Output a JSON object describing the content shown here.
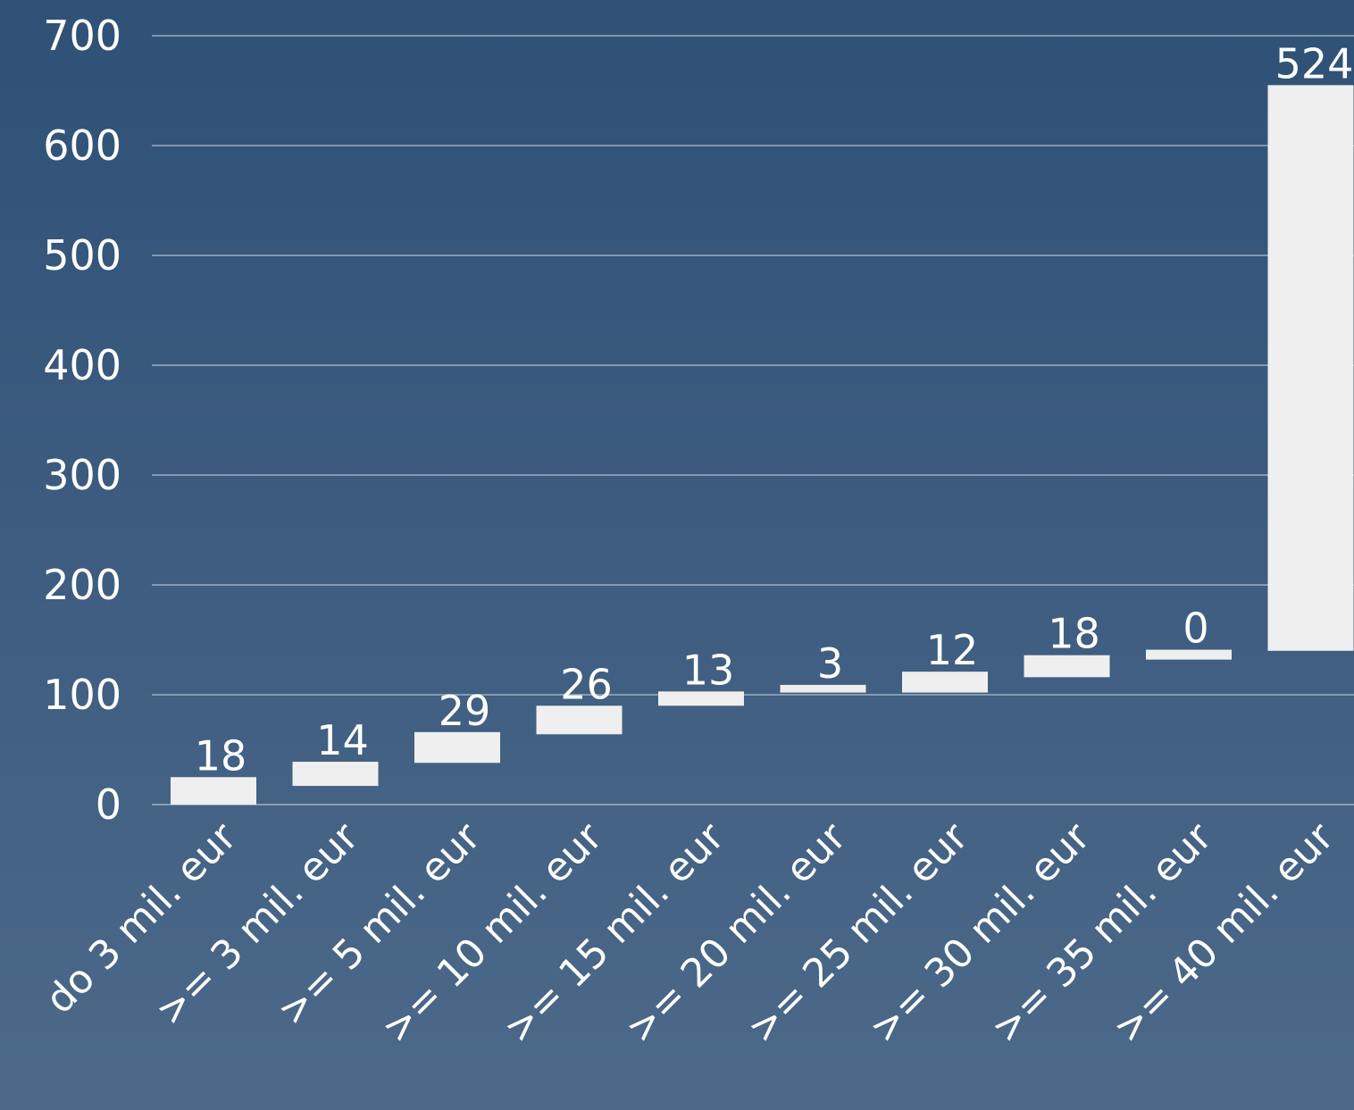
{
  "chart_data": {
    "type": "waterfall",
    "categories": [
      "do 3 mil. eur",
      ">= 3 mil. eur",
      ">= 5 mil. eur",
      ">= 10 mil. eur",
      ">= 15 mil. eur",
      ">= 20 mil. eur",
      ">= 25 mil. eur",
      ">= 30 mil. eur",
      ">= 35 mil. eur",
      ">= 40 mil. eur"
    ],
    "values": [
      18,
      14,
      29,
      26,
      13,
      3,
      12,
      18,
      0,
      524
    ],
    "bar_ranges": [
      [
        0,
        25
      ],
      [
        17,
        39
      ],
      [
        38,
        66
      ],
      [
        64,
        90
      ],
      [
        90,
        103
      ],
      [
        102,
        109
      ],
      [
        102,
        121
      ],
      [
        116,
        136
      ],
      [
        132,
        141
      ],
      [
        140,
        655
      ]
    ],
    "yticks": [
      0,
      100,
      200,
      300,
      400,
      500,
      600,
      700
    ],
    "ylim": [
      0,
      700
    ],
    "grid": true,
    "colors": {
      "bar": "#efefef",
      "grid": "#b5c3d3",
      "text": "#ffffff"
    }
  }
}
